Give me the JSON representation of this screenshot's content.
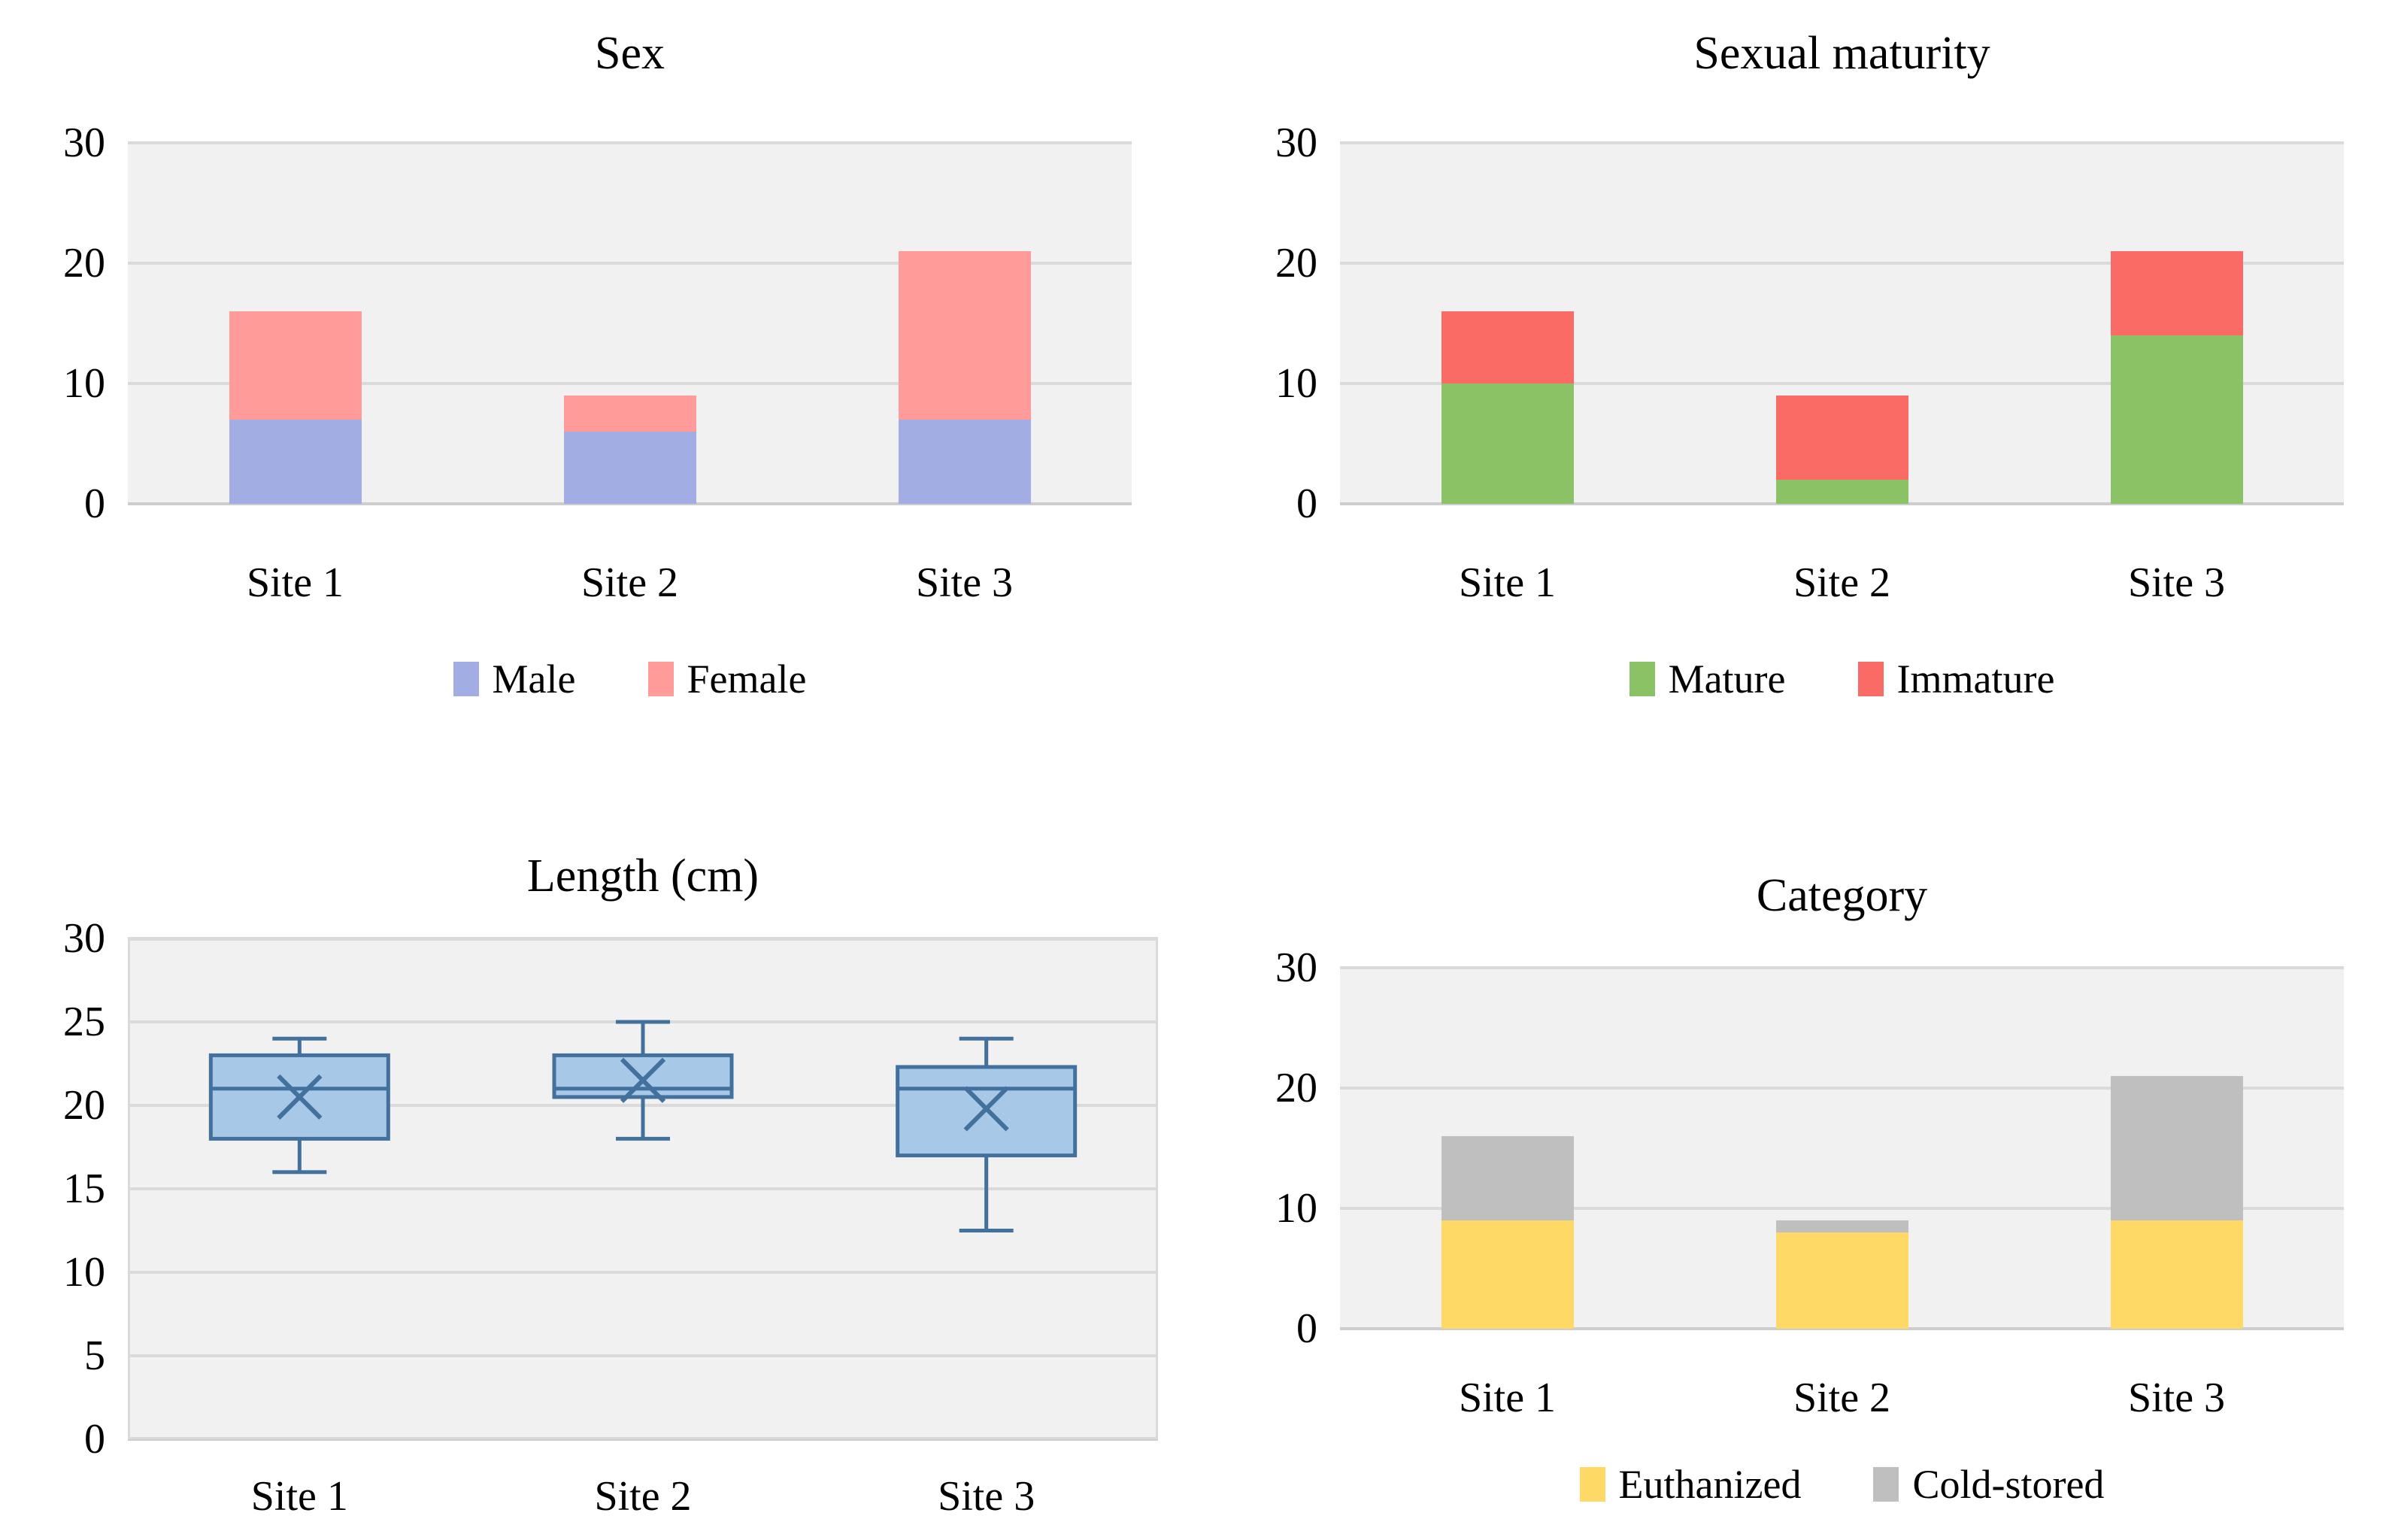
{
  "figure": {
    "background": "#FFFFFF",
    "text_color": "#000000",
    "plot_background": "#F2F1F1",
    "gridline_color": "#DBDADA",
    "baseline_color": "#CDCDCD"
  },
  "chart_data": [
    {
      "type": "bar",
      "stacked": true,
      "title": "Sex",
      "categories": [
        "Site 1",
        "Site 2",
        "Site 3"
      ],
      "series": [
        {
          "name": "Male",
          "color": "#A2ADE3",
          "values": [
            7,
            6,
            7
          ]
        },
        {
          "name": "Female",
          "color": "#FF9B99",
          "values": [
            9,
            3,
            14
          ]
        }
      ],
      "ylim": [
        0,
        30
      ],
      "yticks": [
        0,
        10,
        20,
        30
      ],
      "grid": true,
      "legend_position": "bottom"
    },
    {
      "type": "bar",
      "stacked": true,
      "title": "Sexual maturity",
      "categories": [
        "Site 1",
        "Site 2",
        "Site 3"
      ],
      "series": [
        {
          "name": "Mature",
          "color": "#8BC266",
          "values": [
            10,
            2,
            14
          ]
        },
        {
          "name": "Immature",
          "color": "#FA6B66",
          "values": [
            6,
            7,
            7
          ]
        }
      ],
      "ylim": [
        0,
        30
      ],
      "yticks": [
        0,
        10,
        20,
        30
      ],
      "grid": true,
      "legend_position": "bottom"
    },
    {
      "type": "boxplot",
      "title": "Length (cm)",
      "categories": [
        "Site 1",
        "Site 2",
        "Site 3"
      ],
      "stats": [
        {
          "min": 16,
          "q1": 18,
          "median": 21,
          "q3": 23,
          "max": 24,
          "mean": 20.5
        },
        {
          "min": 18,
          "q1": 20.5,
          "median": 21,
          "q3": 23,
          "max": 25,
          "mean": 21.5
        },
        {
          "min": 12.5,
          "q1": 17,
          "median": 21,
          "q3": 22.3,
          "max": 24,
          "mean": 19.8
        }
      ],
      "box_fill": "#A8C8E8",
      "box_stroke": "#41719C",
      "ylim": [
        0,
        30
      ],
      "yticks": [
        0,
        5,
        10,
        15,
        20,
        25,
        30
      ],
      "grid": true,
      "legend_position": "none"
    },
    {
      "type": "bar",
      "stacked": true,
      "title": "Category",
      "categories": [
        "Site 1",
        "Site 2",
        "Site 3"
      ],
      "series": [
        {
          "name": "Euthanized",
          "color": "#FFD966",
          "values": [
            9,
            8,
            9
          ]
        },
        {
          "name": "Cold-stored",
          "color": "#BFBFBF",
          "values": [
            7,
            1,
            12
          ]
        }
      ],
      "ylim": [
        0,
        30
      ],
      "yticks": [
        0,
        10,
        20,
        30
      ],
      "grid": true,
      "legend_position": "bottom"
    }
  ]
}
